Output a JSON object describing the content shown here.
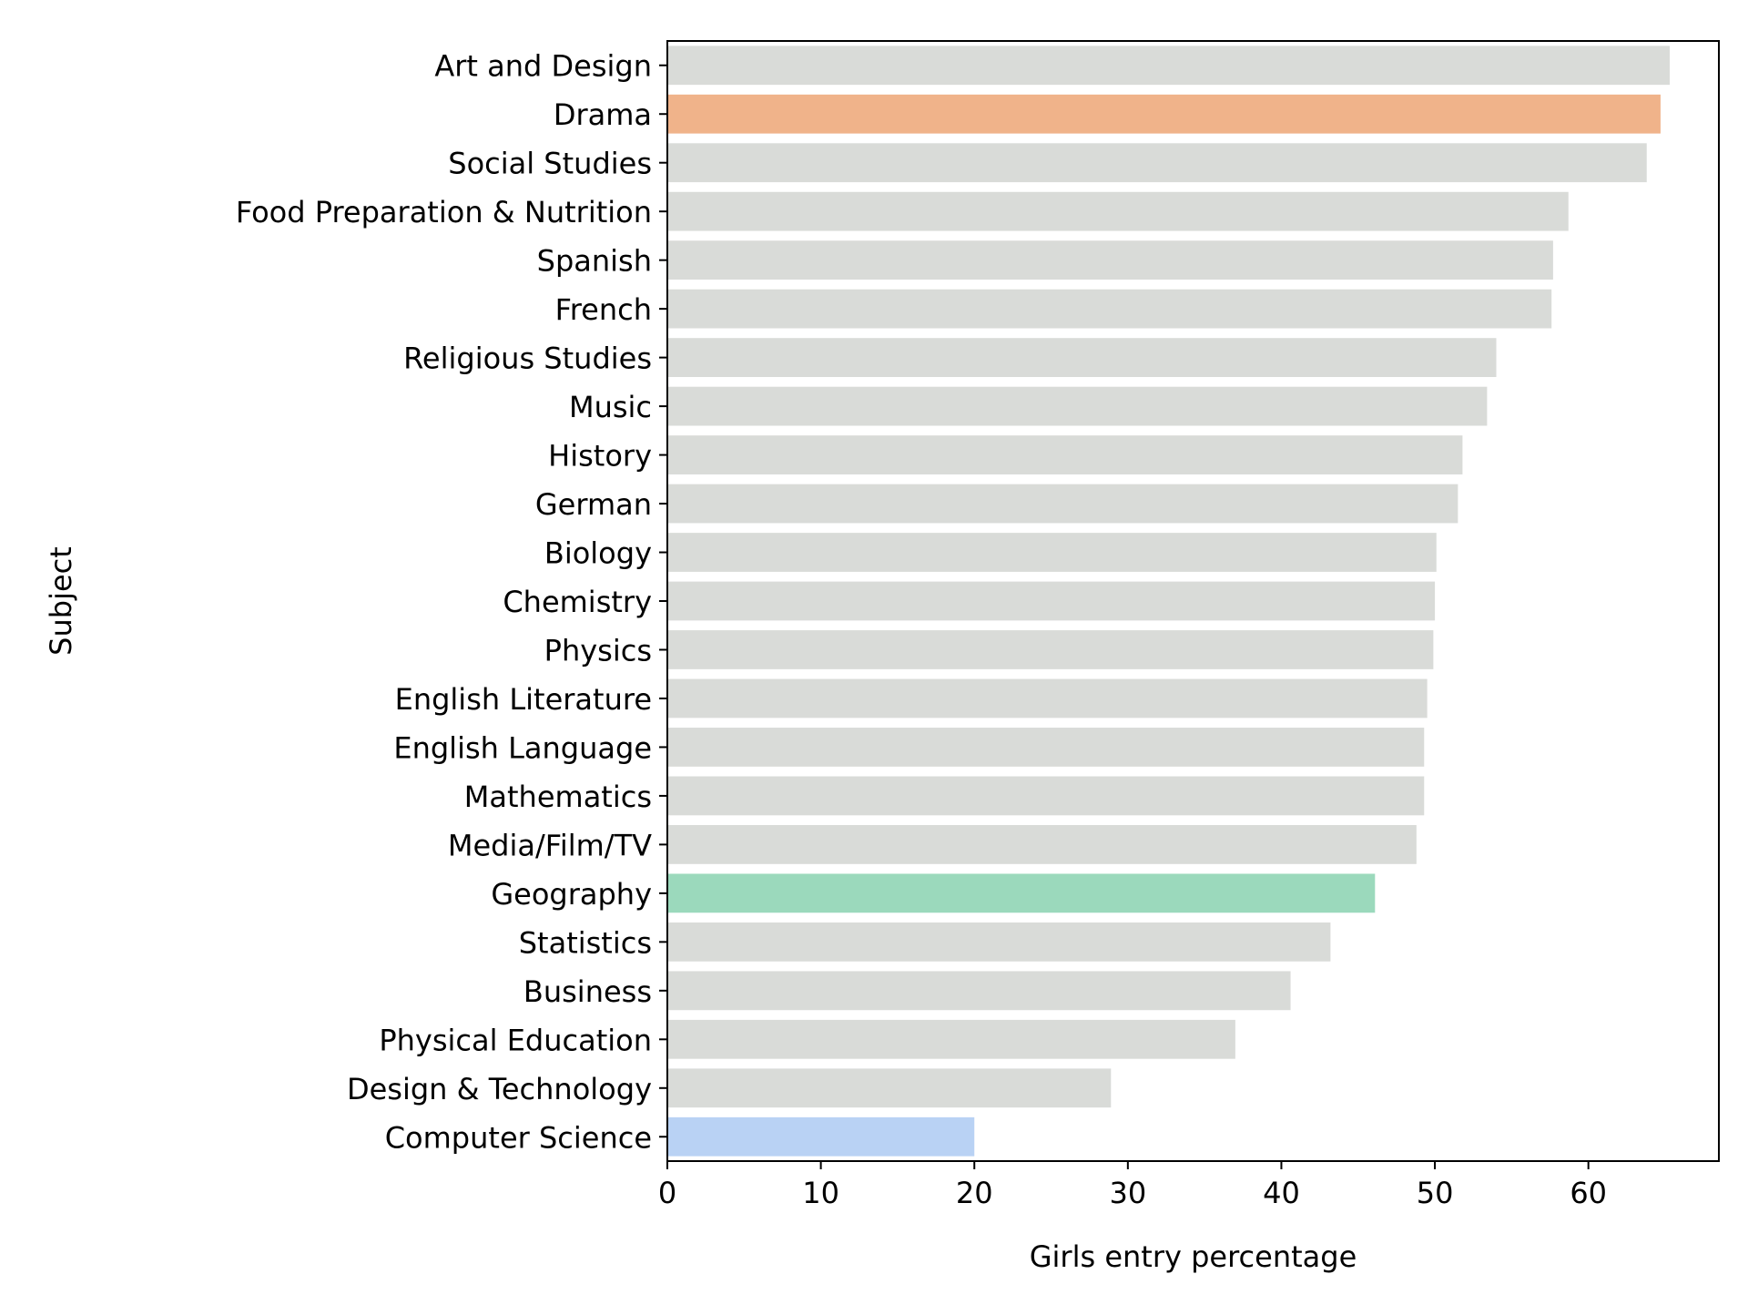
{
  "chart_data": {
    "type": "bar",
    "orientation": "horizontal",
    "categories": [
      "Art and Design",
      "Drama",
      "Social Studies",
      "Food Preparation & Nutrition",
      "Spanish",
      "French",
      "Religious Studies",
      "Music",
      "History",
      "German",
      "Biology",
      "Chemistry",
      "Physics",
      "English Literature",
      "English Language",
      "Mathematics",
      "Media/Film/TV",
      "Geography",
      "Statistics",
      "Business",
      "Physical Education",
      "Design & Technology",
      "Computer Science"
    ],
    "values": [
      65.3,
      64.7,
      63.8,
      58.7,
      57.7,
      57.6,
      54.0,
      53.4,
      51.8,
      51.5,
      50.1,
      50.0,
      49.9,
      49.5,
      49.3,
      49.3,
      48.8,
      46.1,
      43.2,
      40.6,
      37.0,
      28.9,
      20.0
    ],
    "colors": [
      "#d9dbd8",
      "#f0b38a",
      "#d9dbd8",
      "#d9dbd8",
      "#d9dbd8",
      "#d9dbd8",
      "#d9dbd8",
      "#d9dbd8",
      "#d9dbd8",
      "#d9dbd8",
      "#d9dbd8",
      "#d9dbd8",
      "#d9dbd8",
      "#d9dbd8",
      "#d9dbd8",
      "#d9dbd8",
      "#d9dbd8",
      "#9bd9bc",
      "#d9dbd8",
      "#d9dbd8",
      "#d9dbd8",
      "#d9dbd8",
      "#b9d2f4"
    ],
    "title": "",
    "xlabel": "Girls entry percentage",
    "ylabel": "Subject",
    "xlim": [
      0,
      68.5
    ],
    "xticks": [
      0,
      10,
      20,
      30,
      40,
      50,
      60
    ],
    "grid": false,
    "legend": "none"
  }
}
